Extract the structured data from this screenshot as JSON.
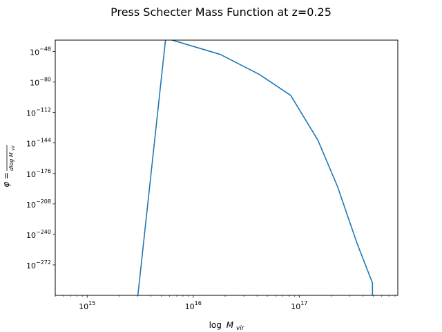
{
  "chart_data": {
    "type": "line",
    "title": "Press Schecter Mass Function at z=0.25",
    "xlabel_base": "log",
    "xlabel_symbol": "M",
    "xlabel_sub": "vir",
    "ylabel_lhs": "φ =",
    "ylabel_frac_top": "",
    "ylabel_frac_bottom": "dlog M",
    "ylabel_frac_bottom_sub": "vir",
    "x_scale": "log",
    "y_scale": "log",
    "xlim": [
      500000000000000,
      850000000000000000
    ],
    "ylim_log10": [
      -304,
      -36
    ],
    "x_ticks": [
      {
        "base": "10",
        "exp": "15",
        "value": 1000000000000000
      },
      {
        "base": "10",
        "exp": "16",
        "value": 10000000000000000
      },
      {
        "base": "10",
        "exp": "17",
        "value": 100000000000000000
      }
    ],
    "y_ticks": [
      {
        "base": "10",
        "exp": "−48",
        "value_log10": -48
      },
      {
        "base": "10",
        "exp": "−80",
        "value_log10": -80
      },
      {
        "base": "10",
        "exp": "−112",
        "value_log10": -112
      },
      {
        "base": "10",
        "exp": "−144",
        "value_log10": -144
      },
      {
        "base": "10",
        "exp": "−176",
        "value_log10": -176
      },
      {
        "base": "10",
        "exp": "−208",
        "value_log10": -208
      },
      {
        "base": "10",
        "exp": "−240",
        "value_log10": -240
      },
      {
        "base": "10",
        "exp": "−272",
        "value_log10": -272
      }
    ],
    "grid": false,
    "legend": "none",
    "series": [
      {
        "color": "#1f77b4",
        "x": [
          3000000000000000,
          5500000000000000,
          18000000000000000,
          42000000000000000,
          83000000000000000,
          150000000000000000,
          230000000000000000,
          350000000000000000,
          490000000000000000,
          490000000000000000
        ],
        "y_log10": [
          -305,
          -34,
          -51,
          -72,
          -94,
          -141,
          -190,
          -249,
          -291,
          -305
        ]
      }
    ]
  }
}
